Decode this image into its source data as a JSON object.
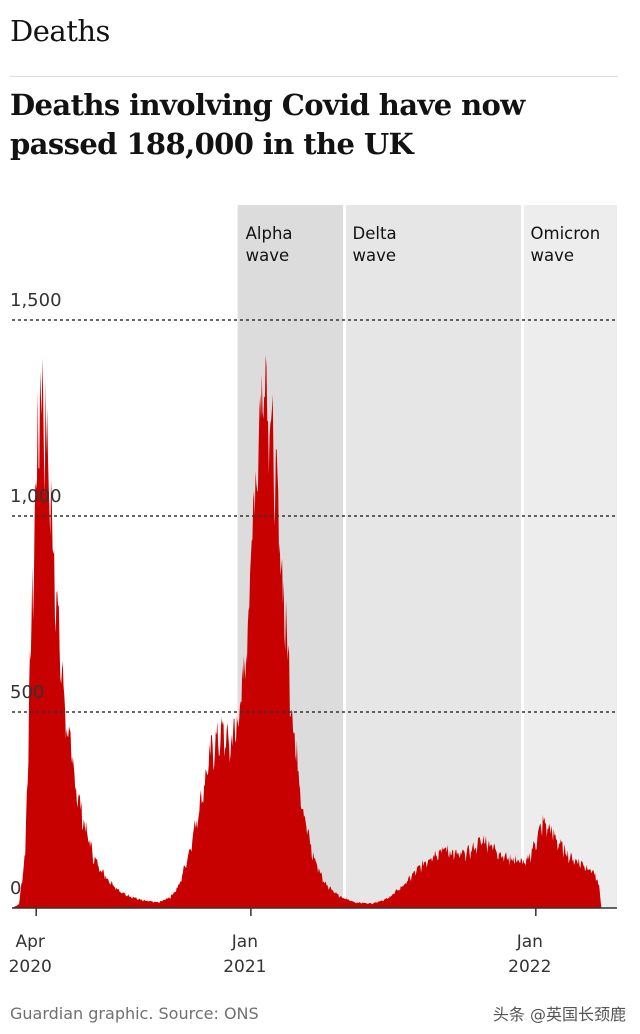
{
  "section": "Deaths",
  "headline": "Deaths involving Covid have now passed 188,000 in the UK",
  "source": "Guardian graphic. Source: ONS",
  "watermark": "头条 @英国长颈鹿",
  "colors": {
    "area": "#c70000",
    "alpha_band": "#dcdcdc",
    "delta_band": "#e6e6e6",
    "omicron_band": "#ededed",
    "grid": "#333333",
    "text": "#121212",
    "axis_label": "#333333"
  },
  "chart_data": {
    "type": "area",
    "title": "Deaths involving Covid have now passed 188,000 in the UK",
    "xlabel": "",
    "ylabel": "",
    "ylim": [
      0,
      1500
    ],
    "xlim": [
      "2020-03-01",
      "2022-04-15"
    ],
    "grid": true,
    "y_ticks": [
      {
        "value": 0,
        "label": "0"
      },
      {
        "value": 500,
        "label": "500"
      },
      {
        "value": 1000,
        "label": "1,000"
      },
      {
        "value": 1500,
        "label": "1,500"
      }
    ],
    "x_ticks": [
      {
        "date": "2020-04-01",
        "line1": "Apr",
        "line2": "2020"
      },
      {
        "date": "2021-01-01",
        "line1": "Jan",
        "line2": "2021"
      },
      {
        "date": "2022-01-01",
        "line1": "Jan",
        "line2": "2022"
      }
    ],
    "waves": [
      {
        "line1": "Alpha",
        "line2": "wave",
        "start": "2020-12-15",
        "end": "2021-05-01",
        "fill": "#dcdcdc"
      },
      {
        "line1": "Delta",
        "line2": "wave",
        "start": "2021-05-01",
        "end": "2021-12-15",
        "fill": "#e6e6e6"
      },
      {
        "line1": "Omicron",
        "line2": "wave",
        "start": "2021-12-15",
        "end": "2022-04-15",
        "fill": "#ededed"
      }
    ],
    "series": [
      {
        "name": "",
        "points": [
          [
            "2020-03-01",
            0
          ],
          [
            "2020-03-10",
            10
          ],
          [
            "2020-03-18",
            150
          ],
          [
            "2020-03-25",
            700
          ],
          [
            "2020-04-01",
            1150
          ],
          [
            "2020-04-06",
            1400
          ],
          [
            "2020-04-10",
            1370
          ],
          [
            "2020-04-16",
            1200
          ],
          [
            "2020-04-24",
            950
          ],
          [
            "2020-05-01",
            700
          ],
          [
            "2020-05-10",
            500
          ],
          [
            "2020-05-20",
            350
          ],
          [
            "2020-06-01",
            230
          ],
          [
            "2020-06-15",
            130
          ],
          [
            "2020-07-01",
            80
          ],
          [
            "2020-07-20",
            40
          ],
          [
            "2020-08-15",
            20
          ],
          [
            "2020-09-05",
            15
          ],
          [
            "2020-09-20",
            30
          ],
          [
            "2020-10-01",
            60
          ],
          [
            "2020-10-15",
            160
          ],
          [
            "2020-11-01",
            320
          ],
          [
            "2020-11-12",
            430
          ],
          [
            "2020-11-25",
            470
          ],
          [
            "2020-12-05",
            440
          ],
          [
            "2020-12-15",
            500
          ],
          [
            "2020-12-25",
            650
          ],
          [
            "2021-01-01",
            950
          ],
          [
            "2021-01-10",
            1260
          ],
          [
            "2021-01-19",
            1480
          ],
          [
            "2021-01-27",
            1300
          ],
          [
            "2021-02-05",
            1050
          ],
          [
            "2021-02-15",
            750
          ],
          [
            "2021-02-25",
            480
          ],
          [
            "2021-03-08",
            280
          ],
          [
            "2021-03-20",
            150
          ],
          [
            "2021-04-05",
            70
          ],
          [
            "2021-04-25",
            30
          ],
          [
            "2021-05-15",
            15
          ],
          [
            "2021-06-05",
            12
          ],
          [
            "2021-06-25",
            25
          ],
          [
            "2021-07-15",
            60
          ],
          [
            "2021-08-01",
            100
          ],
          [
            "2021-08-20",
            140
          ],
          [
            "2021-09-05",
            160
          ],
          [
            "2021-09-25",
            140
          ],
          [
            "2021-10-10",
            155
          ],
          [
            "2021-10-25",
            185
          ],
          [
            "2021-11-05",
            170
          ],
          [
            "2021-11-20",
            140
          ],
          [
            "2021-12-05",
            130
          ],
          [
            "2021-12-20",
            120
          ],
          [
            "2022-01-01",
            180
          ],
          [
            "2022-01-10",
            230
          ],
          [
            "2022-01-20",
            210
          ],
          [
            "2022-02-01",
            170
          ],
          [
            "2022-02-15",
            135
          ],
          [
            "2022-03-01",
            120
          ],
          [
            "2022-03-15",
            100
          ],
          [
            "2022-03-23",
            60
          ],
          [
            "2022-03-26",
            0
          ]
        ]
      }
    ]
  }
}
